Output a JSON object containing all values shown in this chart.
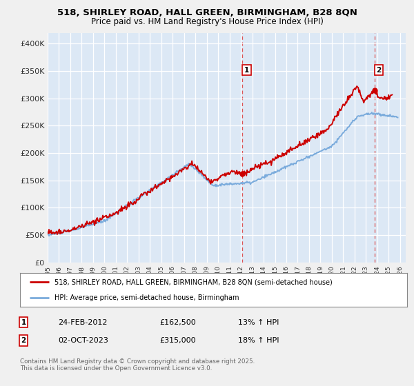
{
  "title1": "518, SHIRLEY ROAD, HALL GREEN, BIRMINGHAM, B28 8QN",
  "title2": "Price paid vs. HM Land Registry's House Price Index (HPI)",
  "background_color": "#f0f0f0",
  "plot_bg_color": "#dce8f5",
  "grid_color": "#ffffff",
  "ylim": [
    0,
    420000
  ],
  "xlim_start": 1995,
  "xlim_end": 2026.5,
  "yticks": [
    0,
    50000,
    100000,
    150000,
    200000,
    250000,
    300000,
    350000,
    400000
  ],
  "ytick_labels": [
    "£0",
    "£50K",
    "£100K",
    "£150K",
    "£200K",
    "£250K",
    "£300K",
    "£350K",
    "£400K"
  ],
  "xticks": [
    1995,
    1996,
    1997,
    1998,
    1999,
    2000,
    2001,
    2002,
    2003,
    2004,
    2005,
    2006,
    2007,
    2008,
    2009,
    2010,
    2011,
    2012,
    2013,
    2014,
    2015,
    2016,
    2017,
    2018,
    2019,
    2020,
    2021,
    2022,
    2023,
    2024,
    2025,
    2026
  ],
  "red_line_color": "#cc0000",
  "blue_line_color": "#7aabdc",
  "sale1_x": 2012.13,
  "sale1_y": 162500,
  "sale2_x": 2023.75,
  "sale2_y": 315000,
  "vline1_x": 2012.13,
  "vline2_x": 2023.75,
  "legend_label_red": "518, SHIRLEY ROAD, HALL GREEN, BIRMINGHAM, B28 8QN (semi-detached house)",
  "legend_label_blue": "HPI: Average price, semi-detached house, Birmingham",
  "footnote": "Contains HM Land Registry data © Crown copyright and database right 2025.\nThis data is licensed under the Open Government Licence v3.0.",
  "marker1_label": "1",
  "marker2_label": "2",
  "sale1_date": "24-FEB-2012",
  "sale1_price": "£162,500",
  "sale1_hpi": "13% ↑ HPI",
  "sale2_date": "02-OCT-2023",
  "sale2_price": "£315,000",
  "sale2_hpi": "18% ↑ HPI"
}
